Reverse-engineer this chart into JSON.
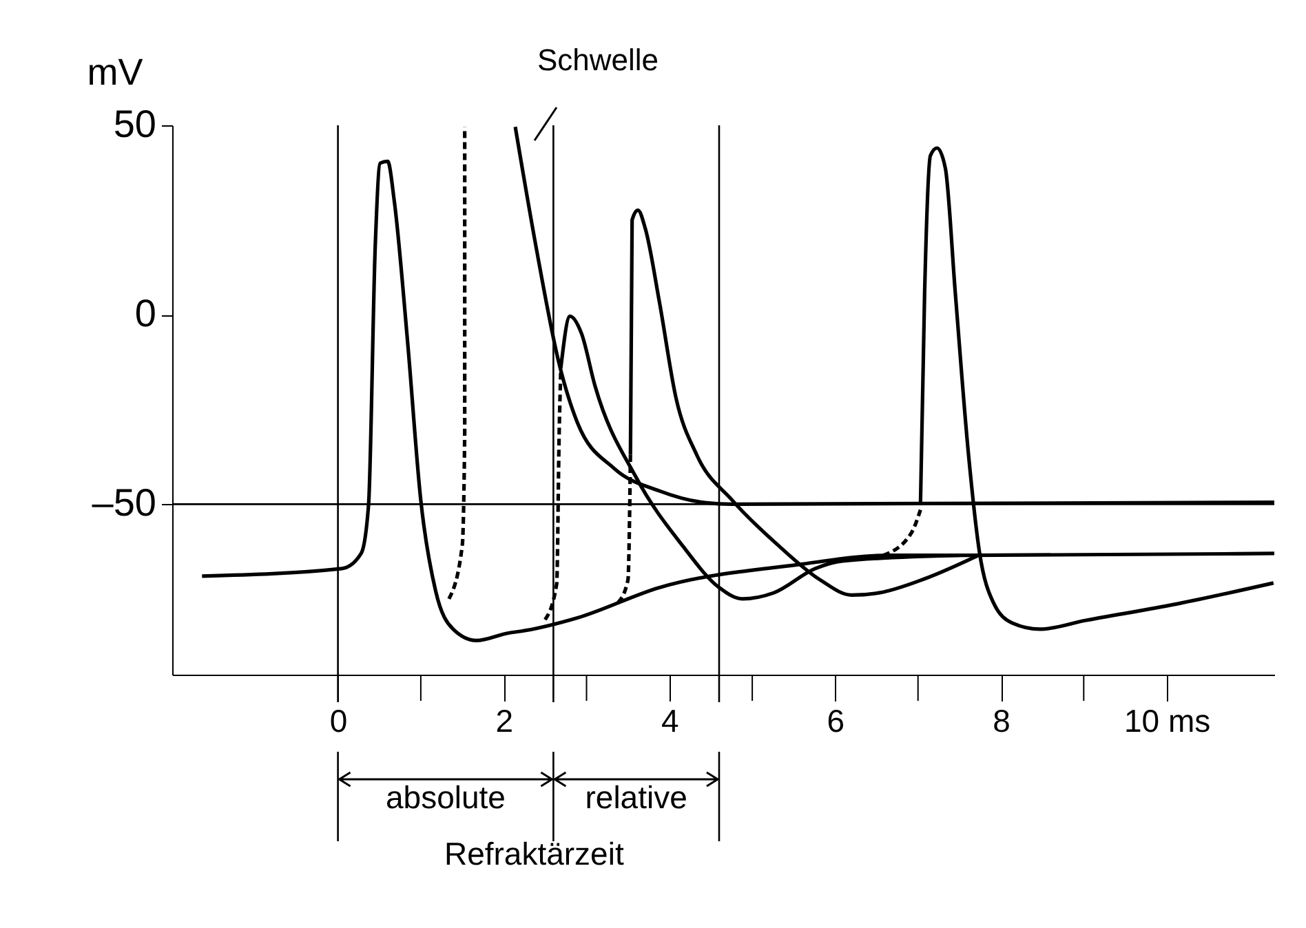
{
  "chart_data": {
    "type": "line",
    "ylabel": "mV",
    "xlim": [
      -2,
      11.3
    ],
    "ylim": [
      -95,
      50
    ],
    "xticks": [
      0,
      2,
      4,
      6,
      8,
      {
        "value": 10,
        "label": "10 ms"
      }
    ],
    "yticks": [
      {
        "value": -50,
        "label": "–50"
      },
      0,
      50
    ],
    "grid": false,
    "series": [
      {
        "color": "#000000",
        "x": [
          -1.64,
          0.05,
          0.28,
          0.37,
          0.45,
          0.51,
          0.6,
          0.68,
          0.84,
          1.0,
          1.18,
          1.39,
          1.67,
          2.06,
          2.22,
          2.89,
          3.88,
          5.54,
          6.65,
          7.64,
          11.3
        ],
        "values": [
          -69,
          -67,
          -63,
          -50,
          18,
          40,
          40.5,
          30,
          -7,
          -49,
          -73,
          -83,
          -86,
          -84,
          -83.5,
          -80,
          -72,
          -66,
          -63.5,
          -63.5,
          -63
        ]
      },
      {
        "color": "#000000",
        "x": [
          2.14,
          2.39,
          2.67,
          2.89,
          3.33,
          3.88,
          4.43,
          4.76,
          11.3
        ],
        "values": [
          49.6,
          18,
          -13,
          -28.5,
          -40.5,
          -46.5,
          -49.6,
          -50,
          -49.5
        ]
      },
      {
        "color": "#000000",
        "line_style": "dashed",
        "x": [
          1.34,
          1.5,
          1.53,
          1.53
        ],
        "values": [
          -75,
          -61,
          -31,
          49.6
        ]
      },
      {
        "color": "#000000",
        "line_style": "dashed",
        "x": [
          2.5,
          2.64,
          2.67,
          2.69
        ],
        "values": [
          -80.5,
          -71,
          -31,
          -14
        ]
      },
      {
        "color": "#000000",
        "x": [
          2.69,
          2.8,
          2.94,
          3.1,
          3.6,
          4.16,
          4.6,
          4.88,
          5.26,
          5.76,
          6.09,
          7.5
        ],
        "values": [
          -14,
          -0.4,
          -5,
          -18.6,
          -43,
          -61,
          -72,
          -75,
          -73.4,
          -67,
          -65,
          -63.5
        ]
      },
      {
        "color": "#000000",
        "line_style": "dashed",
        "x": [
          3.38,
          3.5,
          3.53
        ],
        "values": [
          -76,
          -70,
          -37
        ]
      },
      {
        "color": "#000000",
        "x": [
          3.53,
          3.55,
          3.62,
          3.71,
          3.88,
          4.08,
          4.33,
          4.76,
          5.32,
          5.82,
          6.2,
          6.53,
          7.08,
          7.73
        ],
        "values": [
          -37,
          25,
          27.6,
          22.7,
          3.3,
          -22,
          -37,
          -49,
          -61,
          -70,
          -74,
          -73.4,
          -69.7,
          -63.5
        ]
      },
      {
        "color": "#000000",
        "line_style": "dashed",
        "x": [
          6.58,
          6.92,
          7.03
        ],
        "values": [
          -63.5,
          -57.6,
          -51.5
        ]
      },
      {
        "color": "#000000",
        "x": [
          7.03,
          7.08,
          7.15,
          7.23,
          7.33,
          7.45,
          7.61,
          7.74,
          7.91,
          8.14,
          8.47,
          9.02,
          10.13,
          11.29
        ],
        "values": [
          -50,
          5.8,
          42,
          44,
          38.7,
          5.8,
          -37,
          -62.4,
          -76,
          -81.4,
          -83,
          -80.7,
          -76.3,
          -70.8
        ]
      }
    ],
    "ref_lines": [
      {
        "axis": "x",
        "value": 0
      },
      {
        "axis": "x",
        "value": 2.6
      },
      {
        "axis": "x",
        "value": 4.6
      },
      {
        "axis": "y",
        "value": -50
      }
    ],
    "annotations": [
      "Schwelle",
      "absolute",
      "relative",
      "Refraktärzeit"
    ]
  }
}
